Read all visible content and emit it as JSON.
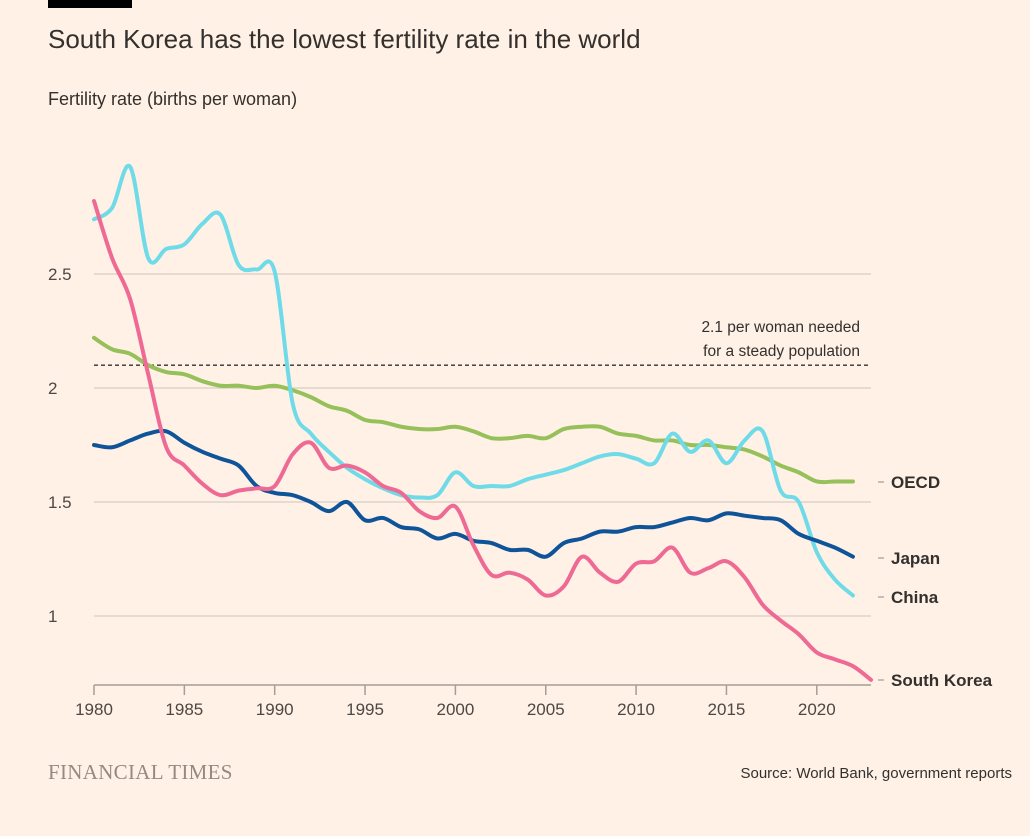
{
  "title": "South Korea has the lowest fertility rate in the world",
  "subtitle": "Fertility rate (births per woman)",
  "source": "Source: World Bank, government reports",
  "logo": "FINANCIAL TIMES",
  "chart_data": {
    "type": "line",
    "ylim": [
      0.7,
      3.0
    ],
    "xlim": [
      1980,
      2023
    ],
    "yticks": [
      {
        "v": 1,
        "label": "1"
      },
      {
        "v": 1.5,
        "label": "1.5"
      },
      {
        "v": 2,
        "label": "2"
      },
      {
        "v": 2.5,
        "label": "2.5"
      }
    ],
    "xticks": [
      {
        "v": 1980,
        "label": "1980"
      },
      {
        "v": 1985,
        "label": "1985"
      },
      {
        "v": 1990,
        "label": "1990"
      },
      {
        "v": 1995,
        "label": "1995"
      },
      {
        "v": 2000,
        "label": "2000"
      },
      {
        "v": 2005,
        "label": "2005"
      },
      {
        "v": 2010,
        "label": "2010"
      },
      {
        "v": 2015,
        "label": "2015"
      },
      {
        "v": 2020,
        "label": "2020"
      }
    ],
    "grid": true,
    "reference_line": {
      "value": 2.1,
      "label_lines": [
        "2.1 per woman needed",
        "for a steady population"
      ]
    },
    "series": [
      {
        "name": "OECD",
        "color": "#96c05a",
        "start": 1980,
        "values": [
          2.22,
          2.17,
          2.15,
          2.1,
          2.07,
          2.06,
          2.03,
          2.01,
          2.01,
          2.0,
          2.01,
          1.99,
          1.96,
          1.92,
          1.9,
          1.86,
          1.85,
          1.83,
          1.82,
          1.82,
          1.83,
          1.81,
          1.78,
          1.78,
          1.79,
          1.78,
          1.82,
          1.83,
          1.83,
          1.8,
          1.79,
          1.77,
          1.77,
          1.75,
          1.75,
          1.74,
          1.73,
          1.7,
          1.66,
          1.63,
          1.59,
          1.59,
          1.59
        ]
      },
      {
        "name": "China",
        "color": "#6fdbe8",
        "start": 1980,
        "values": [
          2.74,
          2.79,
          2.97,
          2.57,
          2.61,
          2.63,
          2.72,
          2.76,
          2.54,
          2.52,
          2.51,
          1.93,
          1.8,
          1.72,
          1.65,
          1.6,
          1.56,
          1.53,
          1.52,
          1.53,
          1.63,
          1.57,
          1.57,
          1.57,
          1.6,
          1.62,
          1.64,
          1.67,
          1.7,
          1.71,
          1.69,
          1.67,
          1.8,
          1.72,
          1.77,
          1.67,
          1.77,
          1.81,
          1.55,
          1.5,
          1.28,
          1.16,
          1.09
        ]
      },
      {
        "name": "Japan",
        "color": "#0f5499",
        "start": 1980,
        "values": [
          1.75,
          1.74,
          1.77,
          1.8,
          1.81,
          1.76,
          1.72,
          1.69,
          1.66,
          1.57,
          1.54,
          1.53,
          1.5,
          1.46,
          1.5,
          1.42,
          1.43,
          1.39,
          1.38,
          1.34,
          1.36,
          1.33,
          1.32,
          1.29,
          1.29,
          1.26,
          1.32,
          1.34,
          1.37,
          1.37,
          1.39,
          1.39,
          1.41,
          1.43,
          1.42,
          1.45,
          1.44,
          1.43,
          1.42,
          1.36,
          1.33,
          1.3,
          1.26
        ]
      },
      {
        "name": "South Korea",
        "color": "#ee6a94",
        "start": 1980,
        "values": [
          2.82,
          2.57,
          2.39,
          2.06,
          1.74,
          1.66,
          1.58,
          1.53,
          1.55,
          1.56,
          1.57,
          1.71,
          1.76,
          1.65,
          1.66,
          1.63,
          1.57,
          1.54,
          1.46,
          1.43,
          1.48,
          1.31,
          1.18,
          1.19,
          1.16,
          1.09,
          1.13,
          1.26,
          1.19,
          1.15,
          1.23,
          1.24,
          1.3,
          1.19,
          1.21,
          1.24,
          1.17,
          1.05,
          0.98,
          0.92,
          0.84,
          0.81,
          0.78,
          0.72
        ]
      }
    ]
  }
}
